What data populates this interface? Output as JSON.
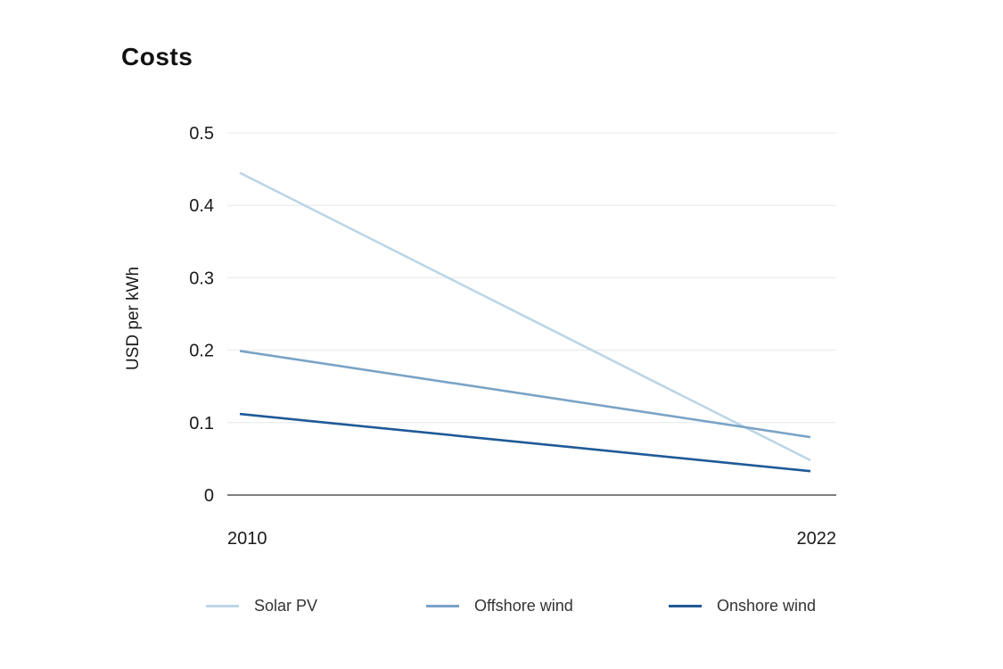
{
  "chart_data": {
    "type": "line",
    "title": "Costs",
    "xlabel": "",
    "ylabel": "USD per kWh",
    "x": [
      "2010",
      "2022"
    ],
    "ylim": [
      0,
      0.5
    ],
    "yticks": [
      {
        "value": 0,
        "label": "0"
      },
      {
        "value": 0.1,
        "label": "0.1"
      },
      {
        "value": 0.2,
        "label": "0.2"
      },
      {
        "value": 0.3,
        "label": "0.3"
      },
      {
        "value": 0.4,
        "label": "0.4"
      },
      {
        "value": 0.5,
        "label": "0.5"
      }
    ],
    "grid": true,
    "legend_position": "bottom",
    "series": [
      {
        "name": "Solar PV",
        "values": [
          0.445,
          0.048
        ],
        "color": "#bcd6e6"
      },
      {
        "name": "Offshore wind",
        "values": [
          0.199,
          0.08
        ],
        "color": "#7aa3c6"
      },
      {
        "name": "Onshore wind",
        "values": [
          0.112,
          0.033
        ],
        "color": "#1f5a96"
      }
    ]
  }
}
